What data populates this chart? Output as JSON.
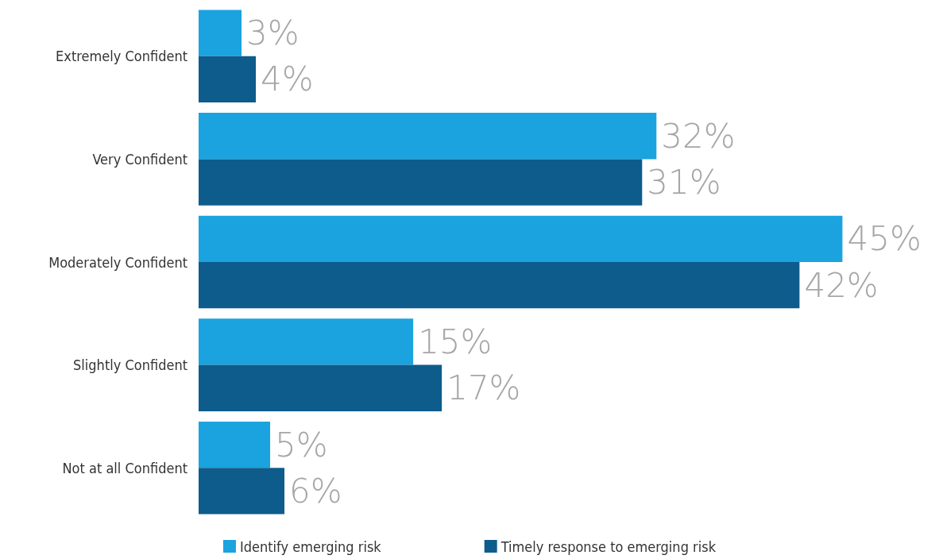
{
  "chart_data": {
    "type": "bar",
    "orientation": "horizontal",
    "categories": [
      "Extremely Confident",
      "Very Confident",
      "Moderately Confident",
      "Slightly Confident",
      "Not at all Confident"
    ],
    "series": [
      {
        "name": "Identify emerging risk",
        "color": "#1aa3df",
        "values": [
          3,
          32,
          45,
          15,
          5
        ],
        "value_labels": [
          "3%",
          "32%",
          "45%",
          "15%",
          "5%"
        ]
      },
      {
        "name": "Timely response to emerging risk",
        "color": "#0d5c8c",
        "values": [
          4,
          31,
          42,
          17,
          6
        ],
        "value_labels": [
          "4%",
          "31%",
          "42%",
          "17%",
          "6%"
        ]
      }
    ],
    "legend": "bottom"
  }
}
